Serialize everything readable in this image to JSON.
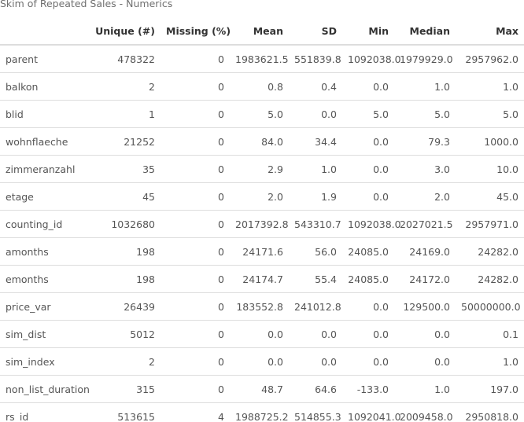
{
  "caption": "Skim of Repeated Sales - Numerics",
  "headers": [
    "",
    "Unique (#)",
    "Missing (%)",
    "Mean",
    "SD",
    "Min",
    "Median",
    "Max"
  ],
  "rows": [
    [
      "parent",
      "478322",
      "0",
      "1983621.5",
      "551839.8",
      "1092038.0",
      "1979929.0",
      "2957962.0"
    ],
    [
      "balkon",
      "2",
      "0",
      "0.8",
      "0.4",
      "0.0",
      "1.0",
      "1.0"
    ],
    [
      "blid",
      "1",
      "0",
      "5.0",
      "0.0",
      "5.0",
      "5.0",
      "5.0"
    ],
    [
      "wohnflaeche",
      "21252",
      "0",
      "84.0",
      "34.4",
      "0.0",
      "79.3",
      "1000.0"
    ],
    [
      "zimmeranzahl",
      "35",
      "0",
      "2.9",
      "1.0",
      "0.0",
      "3.0",
      "10.0"
    ],
    [
      "etage",
      "45",
      "0",
      "2.0",
      "1.9",
      "0.0",
      "2.0",
      "45.0"
    ],
    [
      "counting_id",
      "1032680",
      "0",
      "2017392.8",
      "543310.7",
      "1092038.0",
      "2027021.5",
      "2957971.0"
    ],
    [
      "amonths",
      "198",
      "0",
      "24171.6",
      "56.0",
      "24085.0",
      "24169.0",
      "24282.0"
    ],
    [
      "emonths",
      "198",
      "0",
      "24174.7",
      "55.4",
      "24085.0",
      "24172.0",
      "24282.0"
    ],
    [
      "price_var",
      "26439",
      "0",
      "183552.8",
      "241012.8",
      "0.0",
      "129500.0",
      "50000000.0"
    ],
    [
      "sim_dist",
      "5012",
      "0",
      "0.0",
      "0.0",
      "0.0",
      "0.0",
      "0.1"
    ],
    [
      "sim_index",
      "2",
      "0",
      "0.0",
      "0.0",
      "0.0",
      "0.0",
      "1.0"
    ],
    [
      "non_list_duration",
      "315",
      "0",
      "48.7",
      "64.6",
      "-133.0",
      "1.0",
      "197.0"
    ],
    [
      "rs_id",
      "513615",
      "4",
      "1988725.2",
      "514855.3",
      "1092041.0",
      "2009458.0",
      "2950818.0"
    ]
  ]
}
